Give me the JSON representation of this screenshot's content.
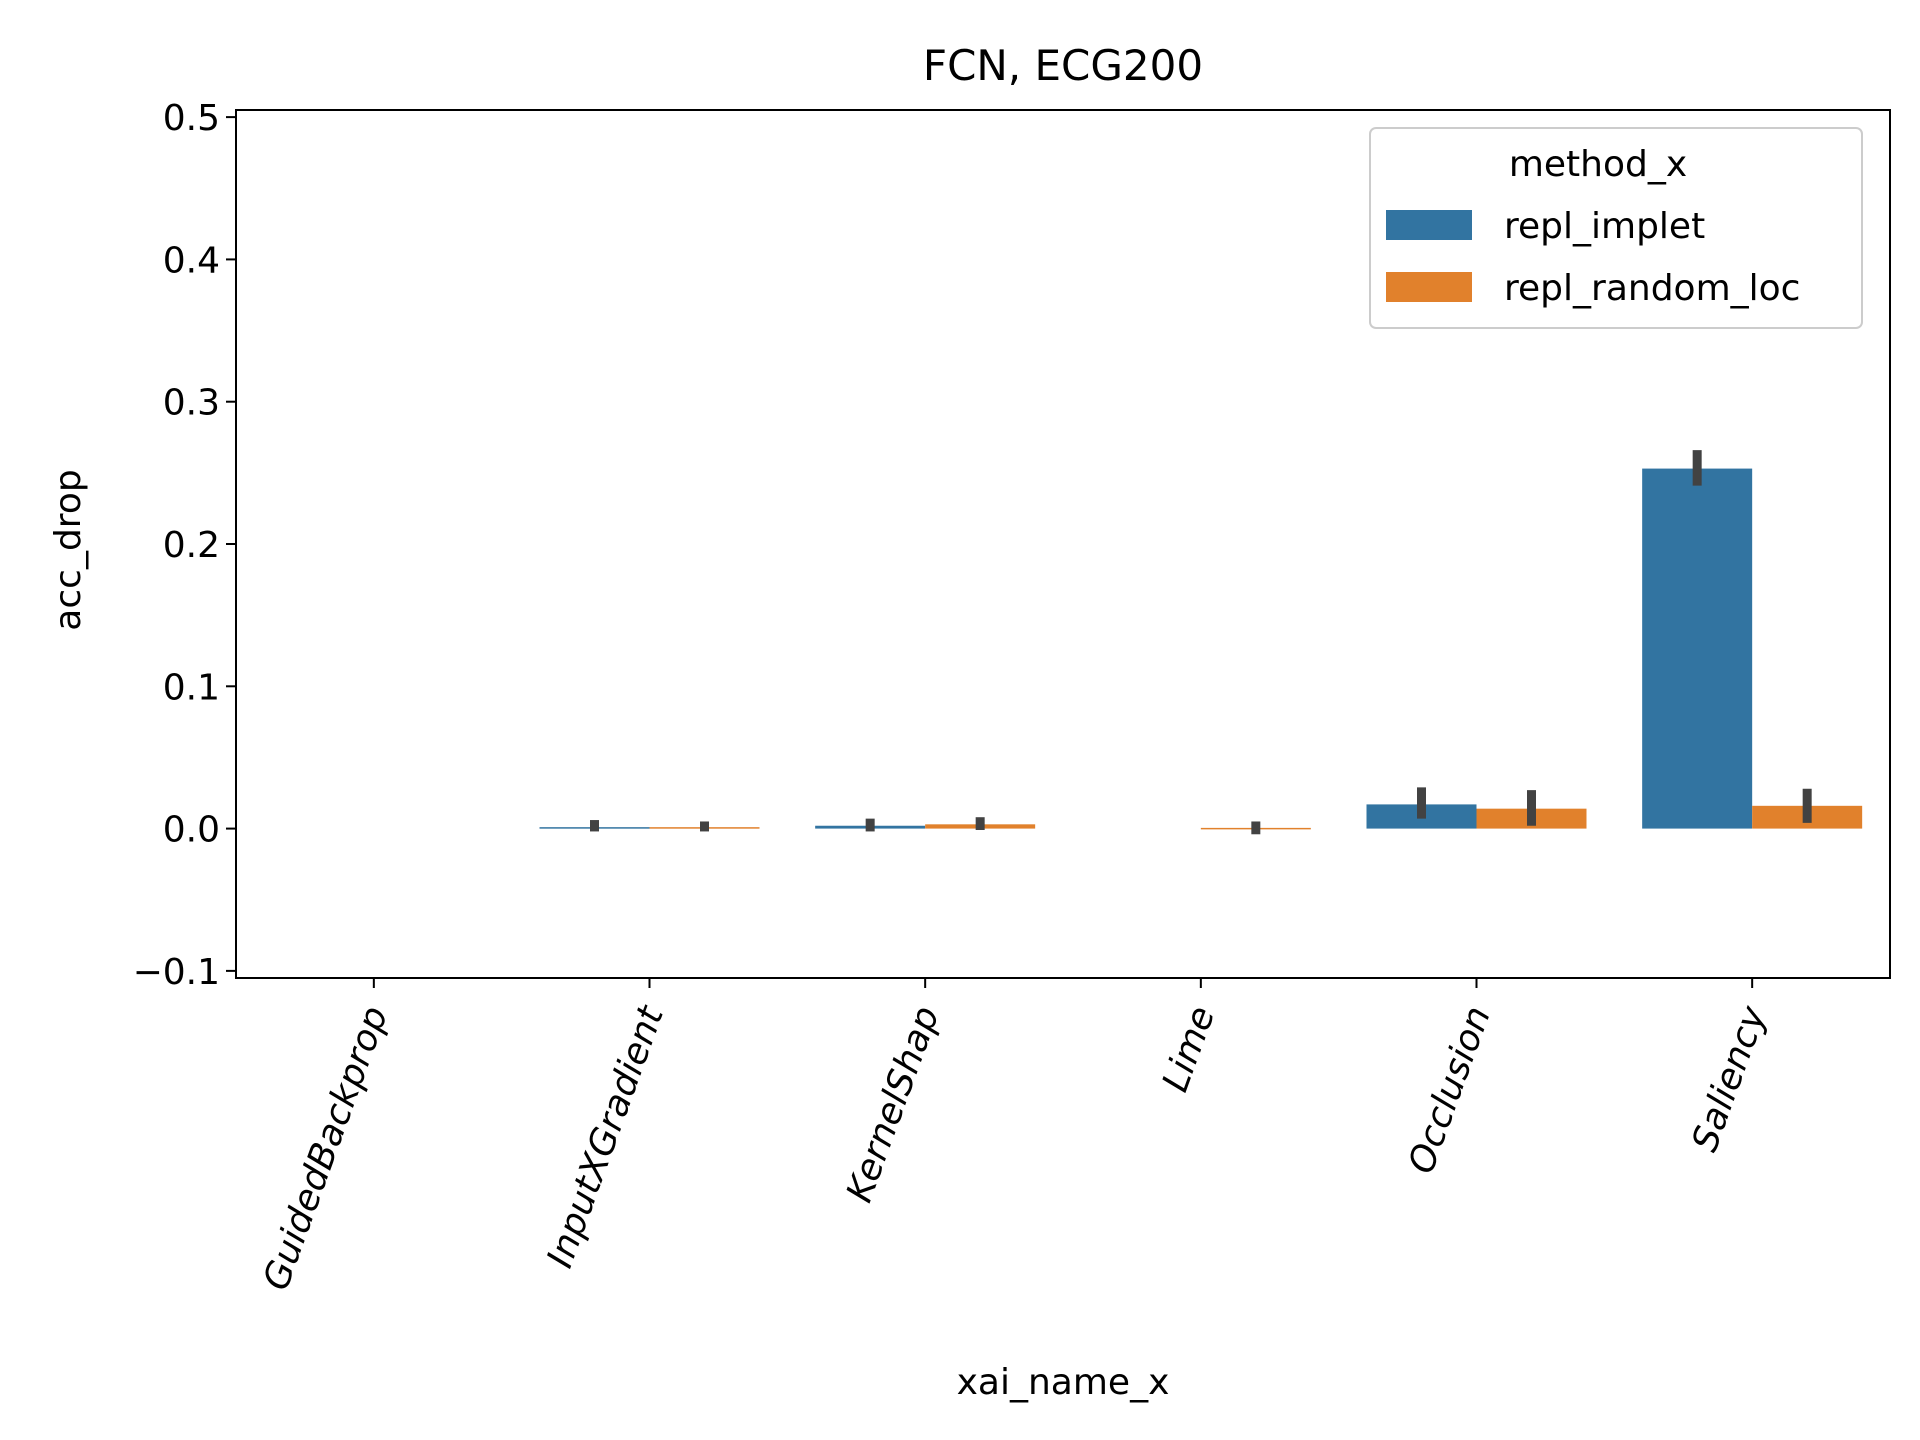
{
  "chart_data": {
    "type": "bar",
    "title": "FCN, ECG200",
    "xlabel": "xai_name_x",
    "ylabel": "acc_drop",
    "ylim": [
      -0.105,
      0.505
    ],
    "yticks": [
      -0.1,
      0.0,
      0.1,
      0.2,
      0.3,
      0.4,
      0.5
    ],
    "ytick_labels": [
      "−0.1",
      "0.0",
      "0.1",
      "0.2",
      "0.3",
      "0.4",
      "0.5"
    ],
    "categories": [
      "GuidedBackprop",
      "InputXGradient",
      "KernelShap",
      "Lime",
      "Occlusion",
      "Saliency"
    ],
    "legend": {
      "title": "method_x",
      "placement": "top-right"
    },
    "series": [
      {
        "name": "repl_implet",
        "color": "#3274a1",
        "values": [
          null,
          0.001,
          0.002,
          null,
          0.017,
          0.253
        ],
        "error": [
          null,
          [
            -0.002,
            0.006
          ],
          [
            -0.002,
            0.007
          ],
          null,
          [
            0.007,
            0.029
          ],
          [
            0.241,
            0.266
          ]
        ]
      },
      {
        "name": "repl_random_loc",
        "color": "#e1812c",
        "values": [
          null,
          0.001,
          0.003,
          0.0005,
          0.014,
          0.016
        ],
        "error": [
          null,
          [
            -0.002,
            0.005
          ],
          [
            -0.001,
            0.008
          ],
          [
            -0.004,
            0.005
          ],
          [
            0.002,
            0.027
          ],
          [
            0.004,
            0.028
          ]
        ]
      }
    ],
    "grid": false,
    "errorbar_color": "#424242"
  }
}
